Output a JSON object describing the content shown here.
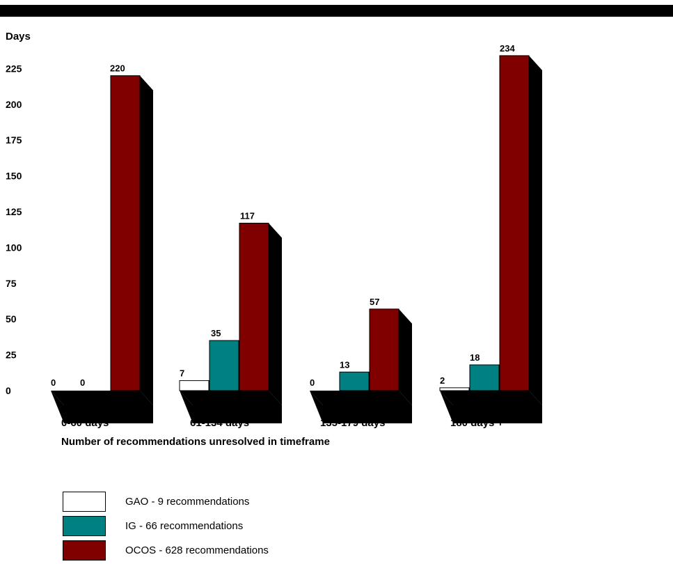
{
  "chart_data": {
    "type": "bar",
    "title": "",
    "ylabel": "Days",
    "xlabel": "Number of recommendations unresolved in timeframe",
    "ylim": [
      0,
      234
    ],
    "yticks": [
      "0",
      "25",
      "50",
      "75",
      "100",
      "125",
      "150",
      "175",
      "200",
      "225"
    ],
    "categories": [
      "0-60 days",
      "61-134 days",
      "135-179 days",
      "180 days +"
    ],
    "series": [
      {
        "name": "GAO - 9 recommendations",
        "color": "#ffffff",
        "values": [
          0,
          7,
          0,
          2
        ],
        "labels": [
          "0",
          "7",
          "0",
          "2"
        ]
      },
      {
        "name": "IG - 66 recommendations",
        "color": "#008080",
        "values": [
          0,
          35,
          13,
          18
        ],
        "labels": [
          "0",
          "35",
          "13",
          "18"
        ]
      },
      {
        "name": "OCOS - 628 recommendations",
        "color": "#800000",
        "values": [
          220,
          117,
          57,
          234
        ],
        "labels": [
          "220",
          "117",
          "57",
          "234"
        ]
      }
    ],
    "legend_position": "bottom-left",
    "grid": false,
    "style": "3d-bar"
  }
}
